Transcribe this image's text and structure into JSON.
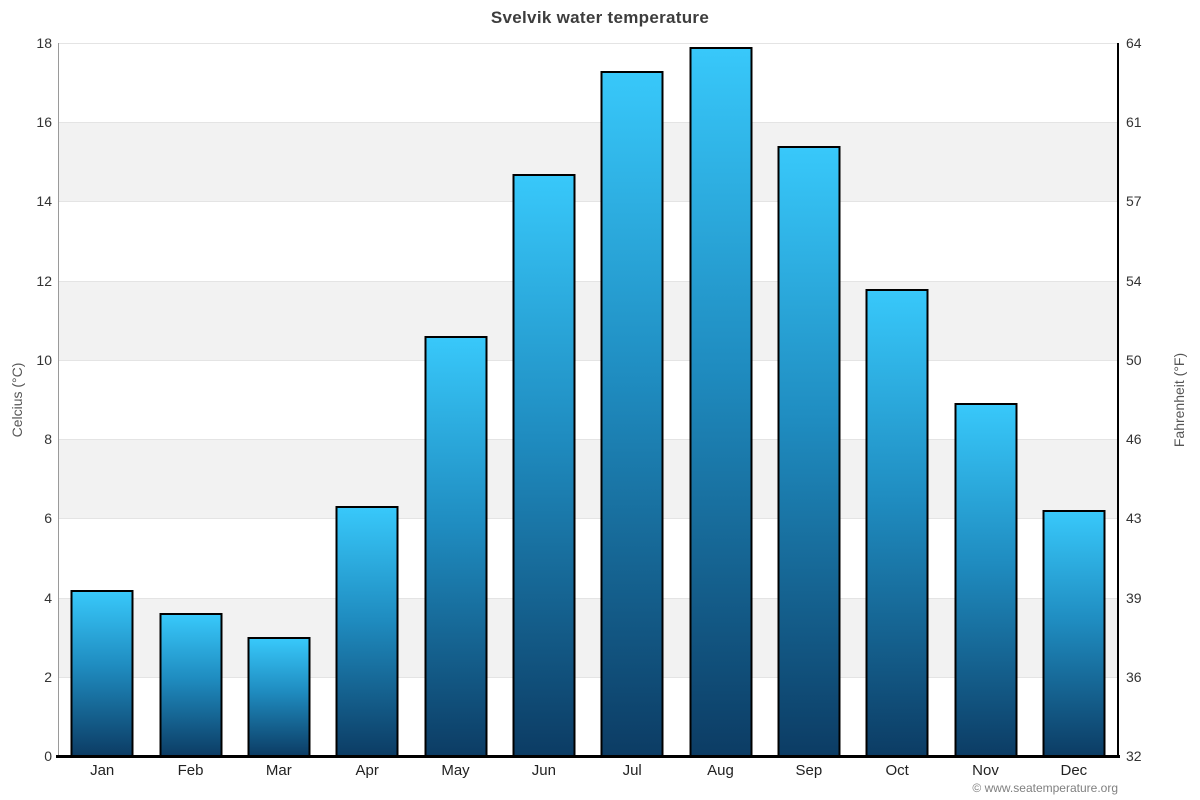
{
  "header": {
    "title": "Svelvik water temperature"
  },
  "footer": {
    "credit": "© www.seatemperature.org"
  },
  "chart_data": {
    "type": "bar",
    "title": "Svelvik water temperature",
    "categories": [
      "Jan",
      "Feb",
      "Mar",
      "Apr",
      "May",
      "Jun",
      "Jul",
      "Aug",
      "Sep",
      "Oct",
      "Nov",
      "Dec"
    ],
    "values": [
      4.2,
      3.6,
      3.0,
      6.3,
      10.6,
      14.7,
      17.3,
      17.9,
      15.4,
      11.8,
      8.9,
      6.2
    ],
    "series_name": "Water temperature",
    "ylabel_left": "Celcius (°C)",
    "ylabel_right": "Fahrenheit (°F)",
    "xlabel": "",
    "ylim": [
      0,
      18
    ],
    "ytick_step": 2,
    "yticks_celsius": [
      0,
      2,
      4,
      6,
      8,
      10,
      12,
      14,
      16,
      18
    ],
    "yticks_fahrenheit": [
      "32",
      "36",
      "39",
      "43",
      "46",
      "50",
      "54",
      "57",
      "61",
      "64"
    ],
    "grid": "horizontal gridlines every 2°C with alternating light-gray bands (2-4, 6-8, 10-12, 14-16)",
    "legend": "none",
    "colors": {
      "bar_gradient_top": "#38c8fa",
      "bar_gradient_bottom": "#0c3c64",
      "bar_border": "#000000",
      "band": "#f2f2f2",
      "gridline": "#e4e4e4",
      "axis_left_line": "#9a9a9a",
      "axis_right_line": "#000000",
      "baseline": "#000000",
      "title_text": "#3d3d3d",
      "tick_text": "#333333",
      "axis_title_text": "#555555",
      "credit_text": "#808080"
    }
  }
}
